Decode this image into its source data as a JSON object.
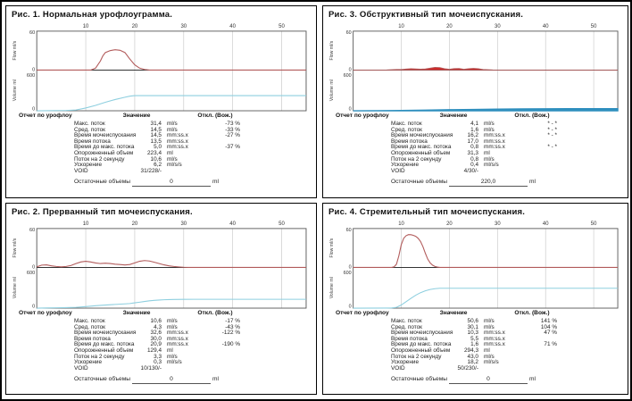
{
  "colors": {
    "flow": "#b25b5b",
    "flow_fill": "#cf2a2a",
    "volume": "#8ecfdf",
    "volume_fill": "#2f8fbe",
    "grid": "#cccccc",
    "frame": "#555555",
    "zero_line": "#333333",
    "tick_text": "#333333",
    "axis_text": "#444444"
  },
  "axis": {
    "x_ticks": [
      10,
      20,
      30,
      40,
      50
    ],
    "x_range": [
      0,
      55
    ],
    "flow_label": "Flow ml/s",
    "flow_max": "60",
    "flow_zero": "0",
    "volume_label": "Volume ml",
    "volume_max": "600",
    "volume_zero": "0"
  },
  "report": {
    "header_left": "Отчет по урофлоу",
    "col_value": "Значение",
    "col_dev": "Откл. (Вож.)",
    "row_labels": [
      "Макс. поток",
      "Сред. поток",
      "Время мочеиспускания",
      "Время потока",
      "Время до макс. потока",
      "Опорожненный объем",
      "Поток на 2 секунду",
      "Ускорение",
      "VOID"
    ],
    "units": [
      "ml/s",
      "ml/s",
      "mm:ss.x",
      "mm:ss.x",
      "mm:ss.x",
      "ml",
      "ml/s",
      "ml/s/s",
      ""
    ],
    "residual_label": "Остаточные объемы",
    "residual_unit": "ml"
  },
  "chart_data": [
    {
      "type": "line",
      "title": "Рис. 1. Нормальная урофлоуграмма.",
      "ylim_flow": [
        0,
        60
      ],
      "ylim_volume": [
        0,
        600
      ],
      "fill_flow": false,
      "fill_volume": false,
      "series": {
        "flow": [
          [
            0,
            0
          ],
          [
            11,
            0
          ],
          [
            12,
            3
          ],
          [
            13,
            14
          ],
          [
            13.5,
            22
          ],
          [
            14,
            27
          ],
          [
            15,
            30
          ],
          [
            16,
            31.4
          ],
          [
            17,
            30.5
          ],
          [
            18,
            27
          ],
          [
            19,
            17
          ],
          [
            20,
            8
          ],
          [
            21,
            3
          ],
          [
            22,
            1
          ],
          [
            23,
            0
          ],
          [
            55,
            0
          ]
        ],
        "volume": [
          [
            0,
            0
          ],
          [
            6,
            4
          ],
          [
            8,
            12
          ],
          [
            10,
            40
          ],
          [
            12,
            80
          ],
          [
            14,
            125
          ],
          [
            16,
            165
          ],
          [
            18,
            200
          ],
          [
            19,
            215
          ],
          [
            20,
            223
          ],
          [
            55,
            223
          ]
        ]
      },
      "values": [
        "31,4",
        "14,5",
        "14,5",
        "13,5",
        "5,0",
        "223,4",
        "10,6",
        "6,2",
        "31/228/-"
      ],
      "devs": [
        "-73 %",
        "-33 %",
        "-27 %",
        "",
        "-37 %",
        "",
        "",
        "",
        ""
      ],
      "residual_value": "0"
    },
    {
      "type": "line",
      "title": "Рис. 2. Прерванный тип мочеиспускания.",
      "ylim_flow": [
        0,
        60
      ],
      "ylim_volume": [
        0,
        600
      ],
      "fill_flow": false,
      "fill_volume": false,
      "series": {
        "flow": [
          [
            0,
            1
          ],
          [
            1,
            3.5
          ],
          [
            2,
            4
          ],
          [
            3,
            2.5
          ],
          [
            4,
            1.5
          ],
          [
            5,
            1
          ],
          [
            6,
            1.5
          ],
          [
            7,
            3
          ],
          [
            8,
            6
          ],
          [
            9,
            8.5
          ],
          [
            10,
            9.5
          ],
          [
            11,
            8.5
          ],
          [
            12,
            7
          ],
          [
            13,
            6
          ],
          [
            14,
            6.5
          ],
          [
            15,
            6
          ],
          [
            16,
            5
          ],
          [
            17,
            4.5
          ],
          [
            18,
            3.8
          ],
          [
            19,
            4.5
          ],
          [
            20,
            7
          ],
          [
            21,
            9.5
          ],
          [
            22,
            10.6
          ],
          [
            23,
            10
          ],
          [
            24,
            8
          ],
          [
            25,
            6
          ],
          [
            26,
            4
          ],
          [
            27,
            2.5
          ],
          [
            28,
            1.5
          ],
          [
            29,
            0.8
          ],
          [
            30,
            0.3
          ],
          [
            31,
            0
          ],
          [
            55,
            0
          ]
        ],
        "volume": [
          [
            0,
            0
          ],
          [
            2,
            2
          ],
          [
            4,
            5
          ],
          [
            6,
            8
          ],
          [
            8,
            12
          ],
          [
            10,
            22
          ],
          [
            12,
            35
          ],
          [
            14,
            45
          ],
          [
            16,
            55
          ],
          [
            18,
            62
          ],
          [
            19,
            68
          ],
          [
            20,
            78
          ],
          [
            21,
            88
          ],
          [
            22,
            98
          ],
          [
            23,
            108
          ],
          [
            24,
            115
          ],
          [
            25,
            120
          ],
          [
            26,
            124
          ],
          [
            27,
            127
          ],
          [
            28,
            128
          ],
          [
            30,
            129
          ],
          [
            32,
            130
          ],
          [
            55,
            130
          ]
        ]
      },
      "values": [
        "10,6",
        "4,3",
        "32,6",
        "30,0",
        "20,9",
        "129,4",
        "3,3",
        "0,3",
        "10/130/-"
      ],
      "devs": [
        "-17 %",
        "-43 %",
        "-122 %",
        "",
        "-190 %",
        "",
        "",
        "",
        ""
      ],
      "residual_value": "0"
    },
    {
      "type": "line",
      "title": "Рис. 3. Обструктивный тип мочеиспускания.",
      "ylim_flow": [
        0,
        60
      ],
      "ylim_volume": [
        0,
        600
      ],
      "fill_flow": true,
      "fill_volume": true,
      "series": {
        "flow": [
          [
            0,
            0
          ],
          [
            7,
            0.2
          ],
          [
            8,
            0.5
          ],
          [
            9,
            0.8
          ],
          [
            10,
            1
          ],
          [
            11,
            1.6
          ],
          [
            12,
            2
          ],
          [
            13,
            1.8
          ],
          [
            14,
            1.4
          ],
          [
            15,
            1.8
          ],
          [
            16,
            3
          ],
          [
            17,
            4.1
          ],
          [
            18,
            3.8
          ],
          [
            19,
            2
          ],
          [
            20,
            1.2
          ],
          [
            21,
            2.2
          ],
          [
            22,
            2.4
          ],
          [
            23,
            1.2
          ],
          [
            24,
            2
          ],
          [
            25,
            2.6
          ],
          [
            26,
            2
          ],
          [
            27,
            1
          ],
          [
            28,
            0.5
          ],
          [
            29,
            0.2
          ],
          [
            30,
            0
          ],
          [
            55,
            0
          ]
        ],
        "volume": [
          [
            0,
            0
          ],
          [
            5,
            1
          ],
          [
            10,
            4
          ],
          [
            15,
            9
          ],
          [
            20,
            15
          ],
          [
            25,
            20
          ],
          [
            30,
            24
          ],
          [
            35,
            27
          ],
          [
            40,
            29
          ],
          [
            45,
            30
          ],
          [
            50,
            31
          ],
          [
            55,
            31.3
          ]
        ]
      },
      "values": [
        "4,1",
        "1,6",
        "16,2",
        "17,0",
        "0,8",
        "31,3",
        "0,8",
        "0,4",
        "4/30/-"
      ],
      "devs": [
        "* - *",
        "* - *",
        "* - *",
        "",
        "* - *",
        "",
        "",
        "",
        ""
      ],
      "residual_value": "220,0"
    },
    {
      "type": "line",
      "title": "Рис. 4. Стремительный тип мочеиспускания.",
      "ylim_flow": [
        0,
        60
      ],
      "ylim_volume": [
        0,
        600
      ],
      "fill_flow": false,
      "fill_volume": false,
      "series": {
        "flow": [
          [
            0,
            0
          ],
          [
            8,
            0
          ],
          [
            8.5,
            1
          ],
          [
            9,
            5
          ],
          [
            9.5,
            18
          ],
          [
            10,
            35
          ],
          [
            10.5,
            45
          ],
          [
            11,
            49
          ],
          [
            11.5,
            50.6
          ],
          [
            12,
            50.5
          ],
          [
            12.5,
            49.5
          ],
          [
            13,
            48
          ],
          [
            13.5,
            45
          ],
          [
            14,
            40
          ],
          [
            14.5,
            32
          ],
          [
            15,
            22
          ],
          [
            15.5,
            13
          ],
          [
            16,
            7
          ],
          [
            16.5,
            3.5
          ],
          [
            17,
            1.5
          ],
          [
            17.5,
            0.5
          ],
          [
            18,
            0
          ],
          [
            55,
            0
          ]
        ],
        "volume": [
          [
            0,
            0
          ],
          [
            7,
            1
          ],
          [
            8,
            3
          ],
          [
            9,
            12
          ],
          [
            10,
            45
          ],
          [
            11,
            95
          ],
          [
            12,
            145
          ],
          [
            13,
            190
          ],
          [
            14,
            228
          ],
          [
            15,
            256
          ],
          [
            16,
            275
          ],
          [
            17,
            287
          ],
          [
            18,
            293
          ],
          [
            19,
            294
          ],
          [
            55,
            294
          ]
        ]
      },
      "values": [
        "50,6",
        "30,1",
        "10,3",
        "5,5",
        "1,6",
        "294,3",
        "43,0",
        "18,2",
        "50/230/-"
      ],
      "devs": [
        "141 %",
        "104 %",
        "47 %",
        "",
        "71 %",
        "",
        "",
        "",
        ""
      ],
      "residual_value": "0"
    }
  ]
}
